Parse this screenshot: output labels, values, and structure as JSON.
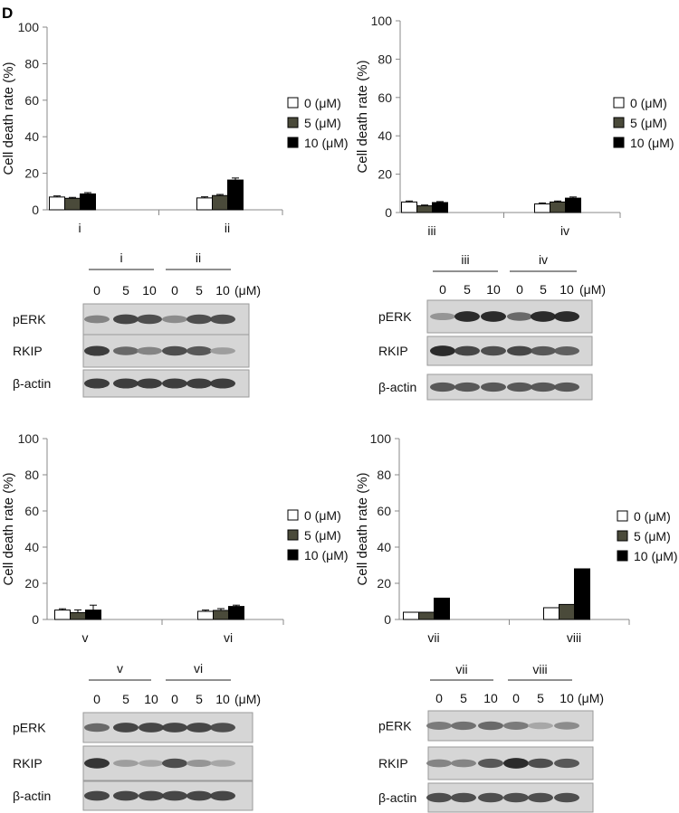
{
  "panel_label": "D",
  "legend": {
    "items": [
      {
        "label": "0 (μM)",
        "color": "#ffffff"
      },
      {
        "label": "5 (μM)",
        "color": "#4a4a3a"
      },
      {
        "label": "10 (μM)",
        "color": "#000000"
      }
    ]
  },
  "chart_data": [
    {
      "type": "bar",
      "ylabel": "Cell death rate (%)",
      "ylim": [
        0,
        100
      ],
      "yticks": [
        0,
        20,
        40,
        60,
        80,
        100
      ],
      "categories": [
        "i",
        "ii"
      ],
      "series": [
        {
          "name": "0 (μM)",
          "values": [
            7,
            6.5
          ],
          "errors": [
            0.6,
            0.6
          ]
        },
        {
          "name": "5 (μM)",
          "values": [
            6.3,
            7.8
          ],
          "errors": [
            0.5,
            0.6
          ]
        },
        {
          "name": "10 (μM)",
          "values": [
            8.7,
            16.3
          ],
          "errors": [
            0.7,
            1.1
          ]
        }
      ],
      "legend": "right"
    },
    {
      "type": "bar",
      "ylabel": "Cell death rate (%)",
      "ylim": [
        0,
        100
      ],
      "yticks": [
        0,
        20,
        40,
        60,
        80,
        100
      ],
      "categories": [
        "iii",
        "iv"
      ],
      "series": [
        {
          "name": "0 (μM)",
          "values": [
            5.5,
            4.5
          ],
          "errors": [
            0.5,
            0.5
          ]
        },
        {
          "name": "5 (μM)",
          "values": [
            3.5,
            5.5
          ],
          "errors": [
            0.4,
            0.5
          ]
        },
        {
          "name": "10 (μM)",
          "values": [
            5.2,
            7.5
          ],
          "errors": [
            0.5,
            0.6
          ]
        }
      ],
      "legend": "right"
    },
    {
      "type": "bar",
      "ylabel": "Cell death rate (%)",
      "ylim": [
        0,
        100
      ],
      "yticks": [
        0,
        20,
        40,
        60,
        80,
        100
      ],
      "categories": [
        "v",
        "vi"
      ],
      "series": [
        {
          "name": "0 (μM)",
          "values": [
            5.2,
            4.5
          ],
          "errors": [
            0.7,
            0.7
          ]
        },
        {
          "name": "5 (μM)",
          "values": [
            3.8,
            5.0
          ],
          "errors": [
            1.5,
            1.0
          ]
        },
        {
          "name": "10 (μM)",
          "values": [
            5.2,
            7.2
          ],
          "errors": [
            2.7,
            0.7
          ]
        }
      ],
      "legend": "right"
    },
    {
      "type": "bar",
      "ylabel": "Cell death rate (%)",
      "ylim": [
        0,
        100
      ],
      "yticks": [
        0,
        20,
        40,
        60,
        80,
        100
      ],
      "categories": [
        "vii",
        "viii"
      ],
      "series": [
        {
          "name": "0 (μM)",
          "values": [
            4,
            6.5
          ],
          "errors": [
            0,
            0
          ]
        },
        {
          "name": "5 (μM)",
          "values": [
            4,
            8.3
          ],
          "errors": [
            0,
            0
          ]
        },
        {
          "name": "10 (μM)",
          "values": [
            11.8,
            28
          ],
          "errors": [
            0,
            0
          ]
        }
      ],
      "legend": "right"
    }
  ],
  "blots": [
    {
      "groups": [
        "i",
        "ii"
      ],
      "doses": [
        "0",
        "5",
        "10",
        "0",
        "5",
        "10"
      ],
      "unit": "(μM)",
      "rows": [
        {
          "label": "pERK",
          "intensity": [
            0.45,
            0.8,
            0.75,
            0.4,
            0.75,
            0.75
          ]
        },
        {
          "label": "RKIP",
          "intensity": [
            0.85,
            0.6,
            0.45,
            0.75,
            0.7,
            0.3
          ]
        },
        {
          "label": "β-actin",
          "intensity": [
            0.85,
            0.85,
            0.85,
            0.85,
            0.85,
            0.85
          ]
        }
      ]
    },
    {
      "groups": [
        "iii",
        "iv"
      ],
      "doses": [
        "0",
        "5",
        "10",
        "0",
        "5",
        "10"
      ],
      "unit": "(μM)",
      "rows": [
        {
          "label": "pERK",
          "intensity": [
            0.35,
            0.95,
            0.95,
            0.6,
            0.95,
            0.95
          ]
        },
        {
          "label": "RKIP",
          "intensity": [
            0.95,
            0.8,
            0.75,
            0.8,
            0.7,
            0.65
          ]
        },
        {
          "label": "β-actin",
          "intensity": [
            0.7,
            0.7,
            0.7,
            0.7,
            0.7,
            0.7
          ]
        }
      ]
    },
    {
      "groups": [
        "v",
        "vi"
      ],
      "doses": [
        "0",
        "5",
        "10",
        "0",
        "5",
        "10"
      ],
      "unit": "(μM)",
      "rows": [
        {
          "label": "pERK",
          "intensity": [
            0.6,
            0.8,
            0.8,
            0.8,
            0.8,
            0.75
          ]
        },
        {
          "label": "RKIP",
          "intensity": [
            0.9,
            0.3,
            0.25,
            0.75,
            0.35,
            0.25
          ]
        },
        {
          "label": "β-actin",
          "intensity": [
            0.8,
            0.8,
            0.8,
            0.8,
            0.8,
            0.8
          ]
        }
      ]
    },
    {
      "groups": [
        "vii",
        "viii"
      ],
      "doses": [
        "0",
        "5",
        "10",
        "0",
        "5",
        "10"
      ],
      "unit": "(μM)",
      "rows": [
        {
          "label": "pERK",
          "intensity": [
            0.5,
            0.55,
            0.6,
            0.5,
            0.25,
            0.4
          ]
        },
        {
          "label": "RKIP",
          "intensity": [
            0.45,
            0.45,
            0.7,
            0.95,
            0.75,
            0.7
          ]
        },
        {
          "label": "β-actin",
          "intensity": [
            0.75,
            0.75,
            0.75,
            0.75,
            0.75,
            0.75
          ]
        }
      ]
    }
  ]
}
